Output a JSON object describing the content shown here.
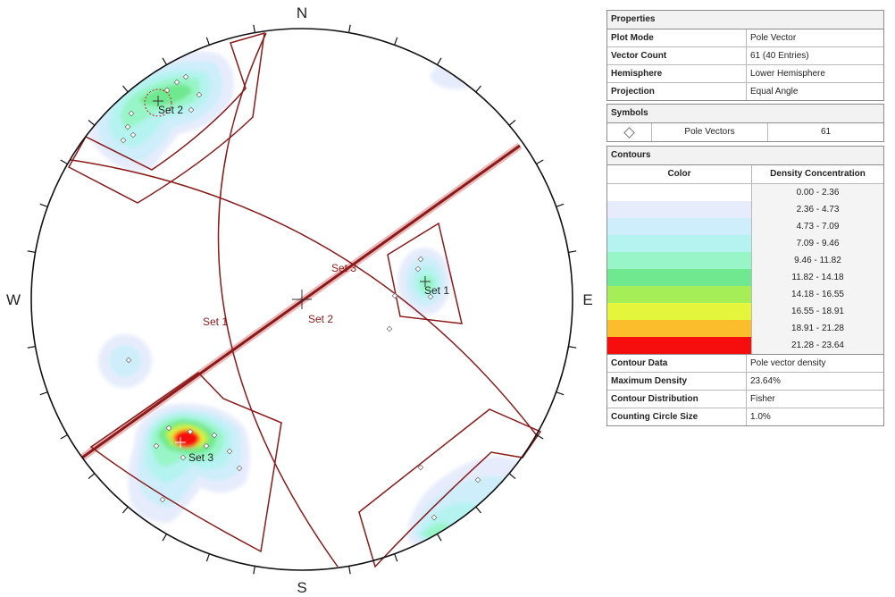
{
  "compass": {
    "north": "N",
    "south": "S",
    "east": "E",
    "west": "W"
  },
  "plot_labels": {
    "set1_pole": "Set 1",
    "set2_pole": "Set 2",
    "set3_pole": "Set 3",
    "set1_plane": "Set 1",
    "set2_plane": "Set 2",
    "set3_plane": "Set 3"
  },
  "colors": {
    "plane_line": "#8b1a1a",
    "window_line": "#8b1a1a",
    "net_outline": "#111111"
  },
  "properties": {
    "title": "Properties",
    "rows": [
      {
        "key": "Plot Mode",
        "value": "Pole Vector"
      },
      {
        "key": "Vector Count",
        "value": "61 (40 Entries)"
      },
      {
        "key": "Hemisphere",
        "value": "Lower Hemisphere"
      },
      {
        "key": "Projection",
        "value": "Equal Angle"
      }
    ]
  },
  "symbols": {
    "title": "Symbols",
    "icon": "diamond-icon",
    "name": "Pole Vectors",
    "count": "61"
  },
  "contours": {
    "title": "Contours",
    "col_color": "Color",
    "col_density": "Density Concentration",
    "bins": [
      {
        "color": "#ffffff",
        "range": "0.00 - 2.36"
      },
      {
        "color": "#e6ecfb",
        "range": "2.36 - 4.73"
      },
      {
        "color": "#cdeefa",
        "range": "4.73 - 7.09"
      },
      {
        "color": "#b4f3f0",
        "range": "7.09 - 9.46"
      },
      {
        "color": "#98f5c7",
        "range": "9.46 - 11.82"
      },
      {
        "color": "#6fe88f",
        "range": "11.82 - 14.18"
      },
      {
        "color": "#a6ee57",
        "range": "14.18 - 16.55"
      },
      {
        "color": "#e4f53c",
        "range": "16.55 - 18.91"
      },
      {
        "color": "#fbbd2c",
        "range": "18.91 - 21.28"
      },
      {
        "color": "#f60d0d",
        "range": "21.28 - 23.64"
      }
    ],
    "info": [
      {
        "key": "Contour Data",
        "value": "Pole vector density"
      },
      {
        "key": "Maximum Density",
        "value": "23.64%"
      },
      {
        "key": "Contour Distribution",
        "value": "Fisher"
      },
      {
        "key": "Counting Circle Size",
        "value": "1.0%"
      }
    ]
  }
}
